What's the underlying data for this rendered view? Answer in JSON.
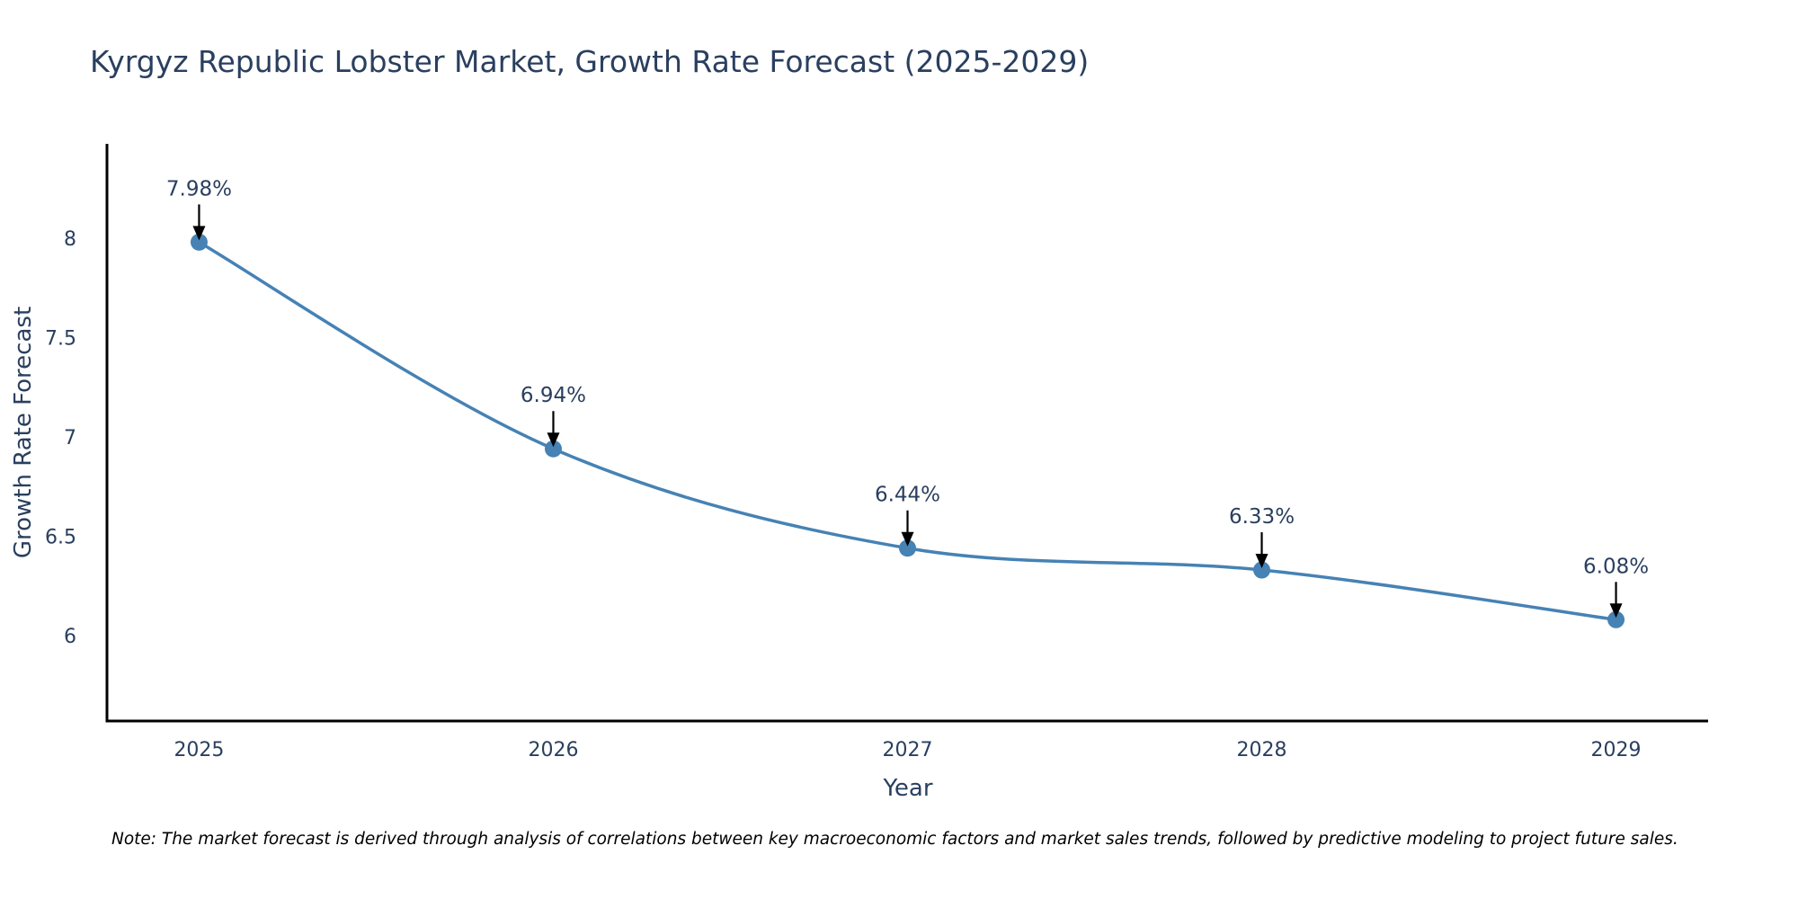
{
  "chart_data": {
    "type": "line",
    "title": "Kyrgyz Republic Lobster Market, Growth Rate Forecast (2025-2029)",
    "xlabel": "Year",
    "ylabel": "Growth Rate Forecast",
    "categories": [
      "2025",
      "2026",
      "2027",
      "2028",
      "2029"
    ],
    "x": [
      2025,
      2026,
      2027,
      2028,
      2029
    ],
    "series": [
      {
        "name": "Growth Rate Forecast",
        "values": [
          7.98,
          6.94,
          6.44,
          6.33,
          6.08
        ],
        "labels": [
          "7.98%",
          "6.94%",
          "6.44%",
          "6.33%",
          "6.08%"
        ],
        "color": "#4682b4",
        "line_shape": "spline",
        "markers": true
      }
    ],
    "xlim": [
      2024.74,
      2029.26
    ],
    "ylim": [
      5.57,
      8.475
    ],
    "yticks": [
      6,
      6.5,
      7,
      7.5,
      8
    ],
    "ytick_labels": [
      "6",
      "6.5",
      "7",
      "7.5",
      "8"
    ],
    "xtick_labels": [
      "2025",
      "2026",
      "2027",
      "2028",
      "2029"
    ],
    "grid": false,
    "legend": "none",
    "annotation_color": "#000000",
    "note": "Note: The market forecast is derived through analysis of correlations between key macroeconomic factors and market sales trends, followed by predictive modeling to project future sales."
  }
}
